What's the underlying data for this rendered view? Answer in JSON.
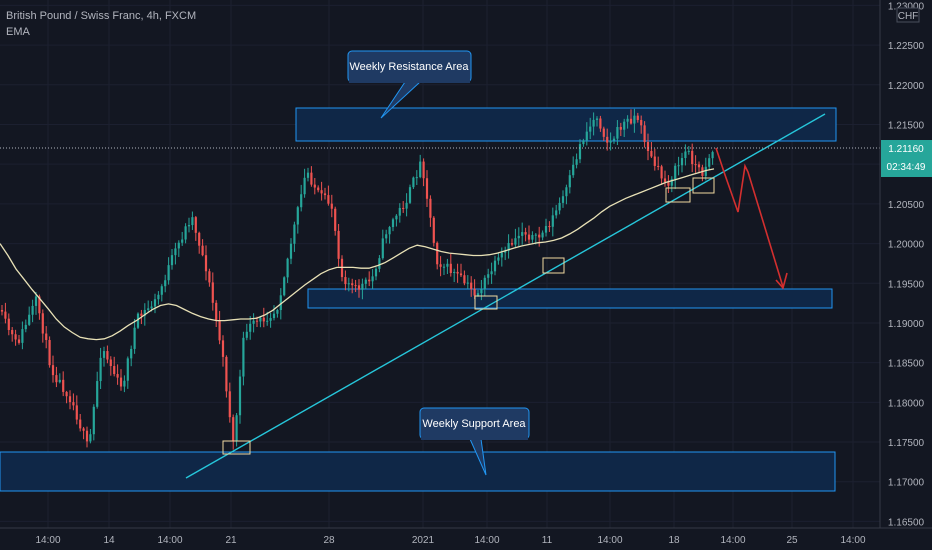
{
  "legend": {
    "symbol": "British Pound / Swiss Franc, 4h, FXCM",
    "indicator": "EMA"
  },
  "colors": {
    "background": "#131722",
    "up_candle": "#26a69a",
    "down_candle": "#ef5350",
    "ema": "#e8e1b6",
    "trendline": "#26c6da",
    "zone_border": "#2196f3",
    "zone_fill": "#0f2747",
    "arrow": "#d32f2f",
    "price_badge": "#26a69a"
  },
  "price_axis": {
    "currency": "CHF",
    "current_price": "1.21160",
    "countdown": "02:34:49",
    "ticks": [
      "1.23000",
      "1.22500",
      "1.22000",
      "1.21500",
      "1.21000",
      "1.20500",
      "1.20000",
      "1.19500",
      "1.19000",
      "1.18500",
      "1.18000",
      "1.17500",
      "1.17000",
      "1.16500"
    ]
  },
  "time_axis": {
    "ticks": [
      "14:00",
      "14",
      "14:00",
      "21",
      "28",
      "2021",
      "14:00",
      "11",
      "14:00",
      "18",
      "14:00",
      "25",
      "14:00"
    ]
  },
  "annotations": {
    "resistance_label": "Weekly Resistance Area",
    "support_label": "Weekly Support Area"
  },
  "chart_data": {
    "type": "candlestick",
    "title": "British Pound / Swiss Franc, 4h, FXCM",
    "ylim": [
      1.165,
      1.23
    ],
    "series": [
      {
        "name": "EMA",
        "values": [
          1.2,
          1.1985,
          1.1968,
          1.1955,
          1.1942,
          1.193,
          1.1918,
          1.1905,
          1.1895,
          1.1888,
          1.1882,
          1.188,
          1.1879,
          1.188,
          1.1884,
          1.189,
          1.1897,
          1.1903,
          1.191,
          1.1917,
          1.1922,
          1.1924,
          1.1922,
          1.1917,
          1.1912,
          1.1908,
          1.1905,
          1.1903,
          1.1903,
          1.1904,
          1.1905,
          1.1905,
          1.1906,
          1.191,
          1.1916,
          1.1924,
          1.1932,
          1.194,
          1.1948,
          1.1955,
          1.1962,
          1.1967,
          1.197,
          1.197,
          1.197,
          1.1969,
          1.1969,
          1.1972,
          1.1976,
          1.1982,
          1.1988,
          1.1994,
          1.1998,
          1.1996,
          1.1993,
          1.199,
          1.1988,
          1.1987,
          1.1986,
          1.1985,
          1.1985,
          1.1986,
          1.1988,
          1.1991,
          1.1994,
          1.1997,
          1.1999,
          1.2001,
          1.2002,
          1.2004,
          1.2007,
          1.2012,
          1.2018,
          1.2025,
          1.2032,
          1.204,
          1.2047,
          1.2052,
          1.2057,
          1.2061,
          1.2065,
          1.2069,
          1.2073,
          1.2077,
          1.208,
          1.2083,
          1.2086,
          1.2089,
          1.2092,
          1.2094
        ]
      }
    ]
  }
}
